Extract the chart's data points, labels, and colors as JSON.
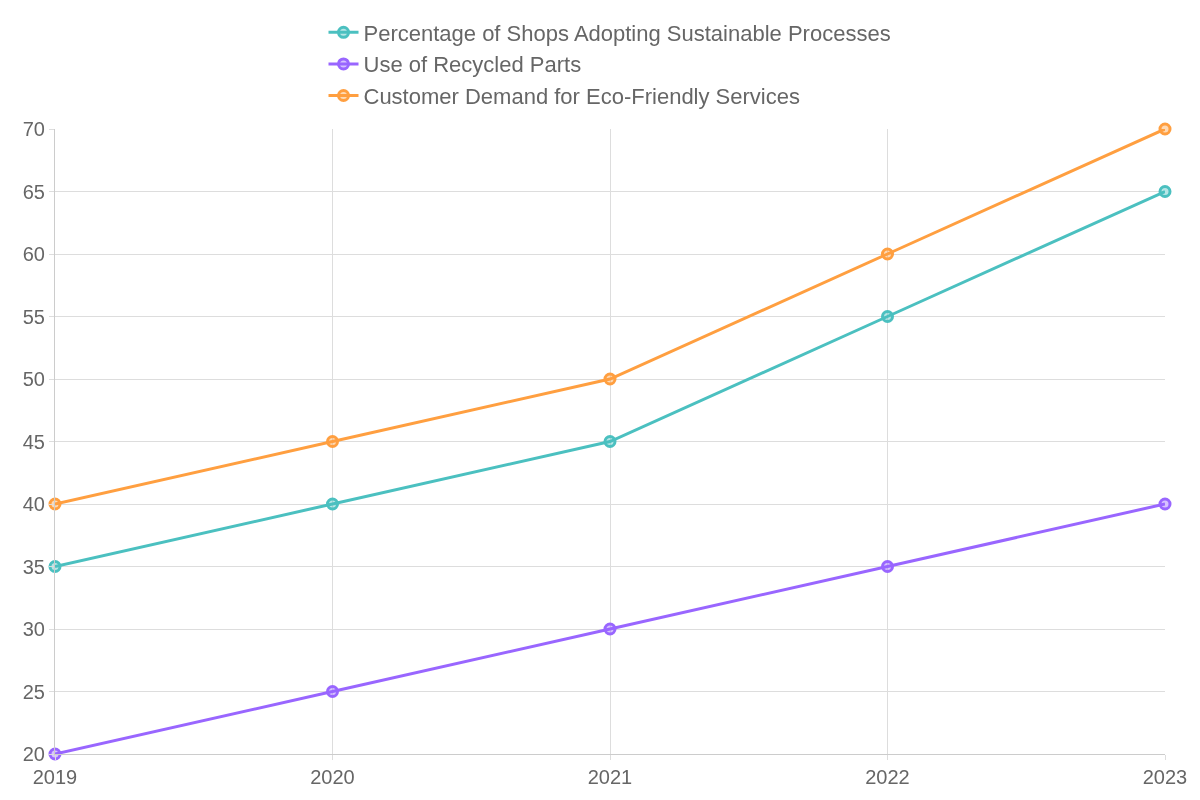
{
  "chart_data": {
    "type": "line",
    "categories": [
      "2019",
      "2020",
      "2021",
      "2022",
      "2023"
    ],
    "series": [
      {
        "name": "Percentage of Shops Adopting Sustainable Processes",
        "color": "#4bc0c0",
        "values": [
          35,
          40,
          45,
          55,
          65
        ]
      },
      {
        "name": "Use of Recycled Parts",
        "color": "#9966ff",
        "values": [
          20,
          25,
          30,
          35,
          40
        ]
      },
      {
        "name": "Customer Demand for Eco-Friendly Services",
        "color": "#ff9f40",
        "values": [
          40,
          45,
          50,
          60,
          70
        ]
      }
    ],
    "ylim": [
      20,
      70
    ],
    "yticks": [
      20,
      25,
      30,
      35,
      40,
      45,
      50,
      55,
      60,
      65,
      70
    ],
    "grid": true,
    "legend": "top",
    "marker": "circle",
    "line_style": "solid"
  }
}
